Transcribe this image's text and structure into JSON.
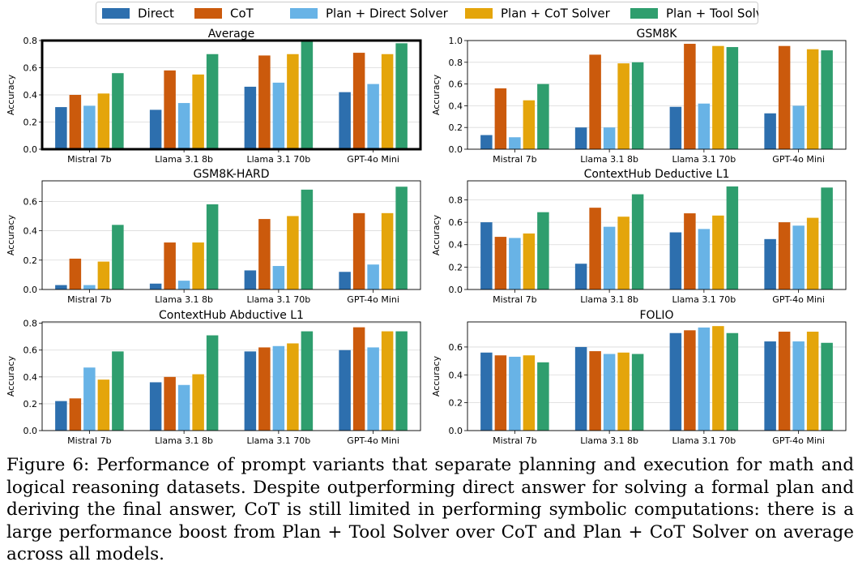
{
  "legend": [
    {
      "name": "Direct",
      "color": "#2d6fae"
    },
    {
      "name": "CoT",
      "color": "#cb5a0c"
    },
    {
      "name": "Plan + Direct Solver",
      "color": "#68b3e6"
    },
    {
      "name": "Plan + CoT Solver",
      "color": "#e4a50b"
    },
    {
      "name": "Plan + Tool Solver",
      "color": "#2f9e6e"
    }
  ],
  "chart_data": [
    {
      "type": "bar",
      "title": "Average",
      "ylabel": "Accuracy",
      "ylim": [
        0,
        0.8
      ],
      "yticks": [
        "0.0",
        "0.2",
        "0.4",
        "0.6",
        "0.8"
      ],
      "categories": [
        "Mistral 7b",
        "Llama 3.1 8b",
        "Llama 3.1 70b",
        "GPT-4o Mini"
      ],
      "highlighted": true,
      "series": [
        {
          "name": "Direct",
          "values": [
            0.31,
            0.29,
            0.46,
            0.42
          ]
        },
        {
          "name": "CoT",
          "values": [
            0.4,
            0.58,
            0.69,
            0.71
          ]
        },
        {
          "name": "Plan + Direct Solver",
          "values": [
            0.32,
            0.34,
            0.49,
            0.48
          ]
        },
        {
          "name": "Plan + CoT Solver",
          "values": [
            0.41,
            0.55,
            0.7,
            0.7
          ]
        },
        {
          "name": "Plan + Tool Solver",
          "values": [
            0.56,
            0.7,
            0.8,
            0.78
          ]
        }
      ]
    },
    {
      "type": "bar",
      "title": "GSM8K",
      "ylabel": "Accuracy",
      "ylim": [
        0,
        1.0
      ],
      "yticks": [
        "0.0",
        "0.2",
        "0.4",
        "0.6",
        "0.8",
        "1.0"
      ],
      "categories": [
        "Mistral 7b",
        "Llama 3.1 8b",
        "Llama 3.1 70b",
        "GPT-4o Mini"
      ],
      "series": [
        {
          "name": "Direct",
          "values": [
            0.13,
            0.2,
            0.39,
            0.33
          ]
        },
        {
          "name": "CoT",
          "values": [
            0.56,
            0.87,
            0.97,
            0.95
          ]
        },
        {
          "name": "Plan + Direct Solver",
          "values": [
            0.11,
            0.2,
            0.42,
            0.4
          ]
        },
        {
          "name": "Plan + CoT Solver",
          "values": [
            0.45,
            0.79,
            0.95,
            0.92
          ]
        },
        {
          "name": "Plan + Tool Solver",
          "values": [
            0.6,
            0.8,
            0.94,
            0.91
          ]
        }
      ]
    },
    {
      "type": "bar",
      "title": "GSM8K-HARD",
      "ylabel": "Accuracy",
      "ylim": [
        0,
        0.74
      ],
      "yticks": [
        "0.0",
        "0.2",
        "0.4",
        "0.6"
      ],
      "categories": [
        "Mistral 7b",
        "Llama 3.1 8b",
        "Llama 3.1 70b",
        "GPT-4o Mini"
      ],
      "series": [
        {
          "name": "Direct",
          "values": [
            0.03,
            0.04,
            0.13,
            0.12
          ]
        },
        {
          "name": "CoT",
          "values": [
            0.21,
            0.32,
            0.48,
            0.52
          ]
        },
        {
          "name": "Plan + Direct Solver",
          "values": [
            0.03,
            0.06,
            0.16,
            0.17
          ]
        },
        {
          "name": "Plan + CoT Solver",
          "values": [
            0.19,
            0.32,
            0.5,
            0.52
          ]
        },
        {
          "name": "Plan + Tool Solver",
          "values": [
            0.44,
            0.58,
            0.68,
            0.7
          ]
        }
      ]
    },
    {
      "type": "bar",
      "title": "ContextHub Deductive L1",
      "ylabel": "Accuracy",
      "ylim": [
        0,
        0.97
      ],
      "yticks": [
        "0.0",
        "0.2",
        "0.4",
        "0.6",
        "0.8"
      ],
      "categories": [
        "Mistral 7b",
        "Llama 3.1 8b",
        "Llama 3.1 70b",
        "GPT-4o Mini"
      ],
      "series": [
        {
          "name": "Direct",
          "values": [
            0.6,
            0.23,
            0.51,
            0.45
          ]
        },
        {
          "name": "CoT",
          "values": [
            0.47,
            0.73,
            0.68,
            0.6
          ]
        },
        {
          "name": "Plan + Direct Solver",
          "values": [
            0.46,
            0.56,
            0.54,
            0.57
          ]
        },
        {
          "name": "Plan + CoT Solver",
          "values": [
            0.5,
            0.65,
            0.66,
            0.64
          ]
        },
        {
          "name": "Plan + Tool Solver",
          "values": [
            0.69,
            0.85,
            0.92,
            0.91
          ]
        }
      ]
    },
    {
      "type": "bar",
      "title": "ContextHub Abductive L1",
      "ylabel": "Accuracy",
      "ylim": [
        0,
        0.81
      ],
      "yticks": [
        "0.0",
        "0.2",
        "0.4",
        "0.6",
        "0.8"
      ],
      "categories": [
        "Mistral 7b",
        "Llama 3.1 8b",
        "Llama 3.1 70b",
        "GPT-4o Mini"
      ],
      "series": [
        {
          "name": "Direct",
          "values": [
            0.22,
            0.36,
            0.59,
            0.6
          ]
        },
        {
          "name": "CoT",
          "values": [
            0.24,
            0.4,
            0.62,
            0.77
          ]
        },
        {
          "name": "Plan + Direct Solver",
          "values": [
            0.47,
            0.34,
            0.63,
            0.62
          ]
        },
        {
          "name": "Plan + CoT Solver",
          "values": [
            0.38,
            0.42,
            0.65,
            0.74
          ]
        },
        {
          "name": "Plan + Tool Solver",
          "values": [
            0.59,
            0.71,
            0.74,
            0.74
          ]
        }
      ]
    },
    {
      "type": "bar",
      "title": "FOLIO",
      "ylabel": "Accuracy",
      "ylim": [
        0,
        0.78
      ],
      "yticks": [
        "0.0",
        "0.2",
        "0.4",
        "0.6"
      ],
      "categories": [
        "Mistral 7b",
        "Llama 3.1 8b",
        "Llama 3.1 70b",
        "GPT-4o Mini"
      ],
      "series": [
        {
          "name": "Direct",
          "values": [
            0.56,
            0.6,
            0.7,
            0.64
          ]
        },
        {
          "name": "CoT",
          "values": [
            0.54,
            0.57,
            0.72,
            0.71
          ]
        },
        {
          "name": "Plan + Direct Solver",
          "values": [
            0.53,
            0.55,
            0.74,
            0.64
          ]
        },
        {
          "name": "Plan + CoT Solver",
          "values": [
            0.54,
            0.56,
            0.75,
            0.71
          ]
        },
        {
          "name": "Plan + Tool Solver",
          "values": [
            0.49,
            0.55,
            0.7,
            0.63
          ]
        }
      ]
    }
  ],
  "caption": "Figure 6: Performance of prompt variants that separate planning and execution for math and logical reasoning datasets. Despite outperforming direct answer for solving a formal plan and deriving the final answer, CoT is still limited in performing symbolic computations: there is a large performance boost from Plan + Tool Solver over CoT and Plan + CoT Solver on average across all models."
}
